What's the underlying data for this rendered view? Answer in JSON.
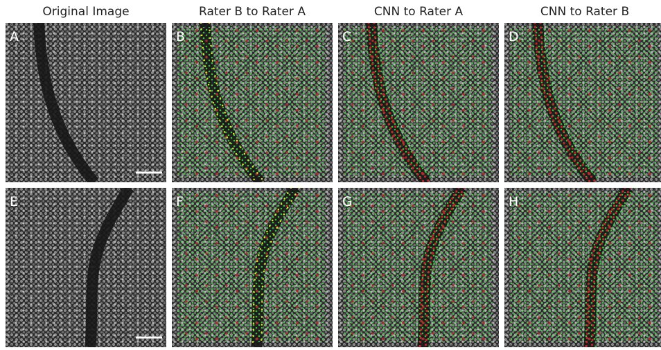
{
  "columns": [
    "Original Image",
    "Rater B to Rater A",
    "CNN to Rater A",
    "CNN to Rater B"
  ],
  "panels": [
    "A",
    "B",
    "C",
    "D",
    "E",
    "F",
    "G",
    "H"
  ]
}
